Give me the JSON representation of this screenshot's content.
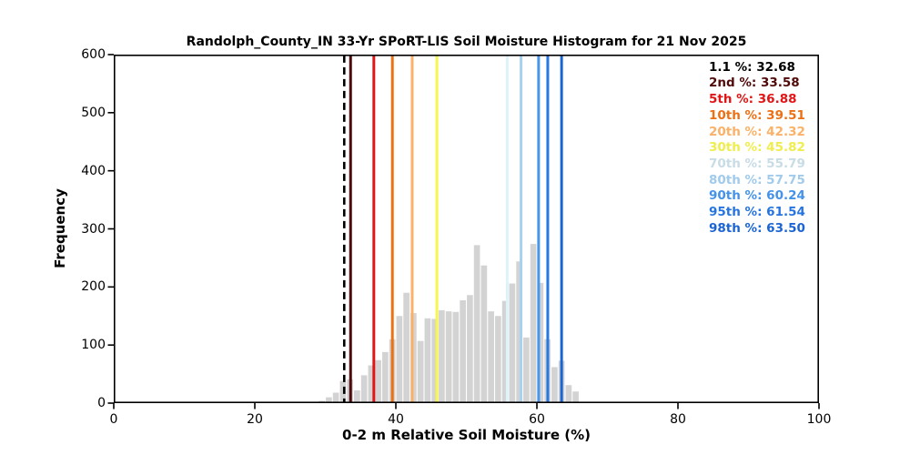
{
  "chart_data": {
    "type": "bar",
    "subtype": "histogram",
    "title": "Randolph_County_IN 33-Yr SPoRT-LIS Soil Moisture Histogram for 21 Nov 2025",
    "xlabel": "0-2 m Relative Soil Moisture (%)",
    "ylabel": "Frequency",
    "xlim": [
      0,
      100
    ],
    "ylim": [
      0,
      600
    ],
    "xticks": [
      0,
      20,
      40,
      60,
      80,
      100
    ],
    "yticks": [
      0,
      100,
      200,
      300,
      400,
      500,
      600
    ],
    "grid": false,
    "legend_position": "upper-right",
    "bar_color": "#d3d3d3",
    "bin_width": 1,
    "bin_left_edges": [
      29,
      30,
      31,
      32,
      33,
      34,
      35,
      36,
      37,
      38,
      39,
      40,
      41,
      42,
      43,
      44,
      45,
      46,
      47,
      48,
      49,
      50,
      51,
      52,
      53,
      54,
      55,
      56,
      57,
      58,
      59,
      60,
      61,
      62,
      63,
      64,
      65
    ],
    "frequencies": [
      4,
      10,
      18,
      38,
      41,
      22,
      48,
      65,
      74,
      88,
      110,
      150,
      190,
      155,
      107,
      146,
      145,
      160,
      158,
      157,
      177,
      186,
      272,
      237,
      158,
      150,
      176,
      206,
      244,
      113,
      274,
      207,
      110,
      62,
      73,
      31,
      20
    ],
    "percentile_lines": [
      {
        "label": "1.1 %",
        "value": 32.68,
        "value_text": "32.68",
        "color": "#000000",
        "text_color": "#000000",
        "line_style": "dashed"
      },
      {
        "label": "2nd %",
        "value": 33.58,
        "value_text": "33.58",
        "color": "#500a0a",
        "text_color": "#500a0a",
        "line_style": "solid"
      },
      {
        "label": "5th %",
        "value": 36.88,
        "value_text": "36.88",
        "color": "#e11515",
        "text_color": "#e11515",
        "line_style": "solid"
      },
      {
        "label": "10th %",
        "value": 39.51,
        "value_text": "39.51",
        "color": "#ec7014",
        "text_color": "#ec7014",
        "line_style": "solid"
      },
      {
        "label": "20th %",
        "value": 42.32,
        "value_text": "42.32",
        "color": "#fbb167",
        "text_color": "#fbb167",
        "line_style": "solid"
      },
      {
        "label": "30th %",
        "value": 45.82,
        "value_text": "45.82",
        "color": "#f7f64f",
        "text_color": "#efee4c",
        "line_style": "solid"
      },
      {
        "label": "70th %",
        "value": 55.79,
        "value_text": "55.79",
        "color": "#ddf2fb",
        "text_color": "#c8dce6",
        "line_style": "solid"
      },
      {
        "label": "80th %",
        "value": 57.75,
        "value_text": "57.75",
        "color": "#a6d2f0",
        "text_color": "#a0cbec",
        "line_style": "solid"
      },
      {
        "label": "90th %",
        "value": 60.24,
        "value_text": "60.24",
        "color": "#4796ec",
        "text_color": "#4492e9",
        "line_style": "solid"
      },
      {
        "label": "95th %",
        "value": 61.54,
        "value_text": "61.54",
        "color": "#2878e4",
        "text_color": "#2574e0",
        "line_style": "solid"
      },
      {
        "label": "98th %",
        "value": 63.5,
        "value_text": "63.50",
        "color": "#1b64d3",
        "text_color": "#1b64d3",
        "line_style": "solid"
      }
    ]
  },
  "layout_colors": {
    "background": "#ffffff",
    "axis": "#000000",
    "tick_text": "#000000"
  }
}
